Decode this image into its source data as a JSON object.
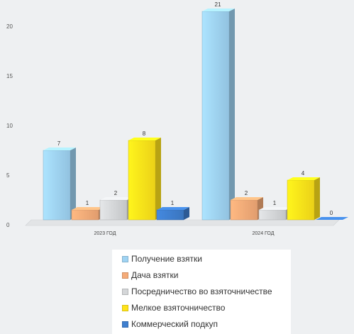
{
  "chart_data": {
    "type": "bar",
    "title": "",
    "xlabel": "",
    "ylabel": "",
    "ylim": [
      0,
      21
    ],
    "yticks": [
      0,
      5,
      10,
      15,
      20
    ],
    "categories": [
      "2023 ГОД",
      "2024 ГОД"
    ],
    "series": [
      {
        "name": "Получение взятки",
        "color": "#9fd3f3",
        "values": [
          7,
          21
        ]
      },
      {
        "name": "Дача взятки",
        "color": "#f5ab78",
        "values": [
          1,
          2
        ]
      },
      {
        "name": "Посредничество во взяточничестве",
        "color": "#d4d6d8",
        "values": [
          2,
          1
        ]
      },
      {
        "name": "Мелкое взяточничество",
        "color": "#ffe31a",
        "values": [
          8,
          4
        ]
      },
      {
        "name": "Коммерческий подкуп",
        "color": "#3f7fcf",
        "values": [
          1,
          0
        ]
      }
    ],
    "legend_position": "bottom",
    "grid": false
  }
}
